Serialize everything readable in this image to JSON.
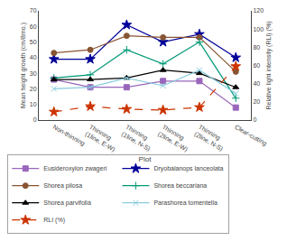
{
  "chart_data": {
    "type": "line",
    "xlabel": "Plot",
    "ylabel": "Mean height growth (cm/8mo.)",
    "y2label": "Relative light intensity (RLI) (%)",
    "categories": [
      "Non-thinning",
      "Thinning\n(1line, E-W)",
      "Thinning\n(1line, N-S)",
      "Thinning\n(2line, E-W)",
      "Thinning\n(2line, N-S)",
      "Clear-cutting"
    ],
    "series": [
      {
        "name": "Eusideroxylon zwageri",
        "color": "#9966bb",
        "marker": "square",
        "line_style": "solid",
        "values": [
          26,
          21,
          21,
          25,
          25,
          8
        ]
      },
      {
        "name": "Dryobalanops lanceolata",
        "color": "#000099",
        "marker": "star",
        "line_style": "solid",
        "values": [
          39,
          39,
          61,
          50,
          55,
          40
        ]
      },
      {
        "name": "Shorea pilosa",
        "color": "#885533",
        "marker": "circle",
        "line_style": "solid",
        "values": [
          43,
          45,
          54,
          53,
          53,
          31
        ]
      },
      {
        "name": "Shorea beccariana",
        "color": "#009977",
        "marker": "plus",
        "line_style": "solid",
        "values": [
          27,
          29,
          45,
          36,
          50,
          14
        ]
      },
      {
        "name": "Shorea parvifolia",
        "color": "#000000",
        "marker": "triangle",
        "line_style": "solid",
        "values": [
          26,
          26,
          27,
          32,
          30,
          21
        ]
      },
      {
        "name": "Parashorea tomentella",
        "color": "#88ccdd",
        "marker": "x",
        "line_style": "solid",
        "values": [
          20,
          21,
          27,
          22,
          32,
          17
        ]
      },
      {
        "name": "RLI (%)",
        "axis": "y2",
        "color": "#cc3300",
        "marker": "star",
        "line_style": "dashed",
        "values": [
          9,
          15,
          12,
          11,
          14,
          59
        ]
      }
    ],
    "ylim": [
      0,
      70
    ],
    "yticks": [
      0,
      10,
      20,
      30,
      40,
      50,
      60,
      70
    ],
    "y2lim": [
      0,
      120
    ],
    "y2ticks": [
      0,
      20,
      40,
      60,
      80,
      100,
      120
    ],
    "grid": false,
    "legend": "bottom"
  }
}
